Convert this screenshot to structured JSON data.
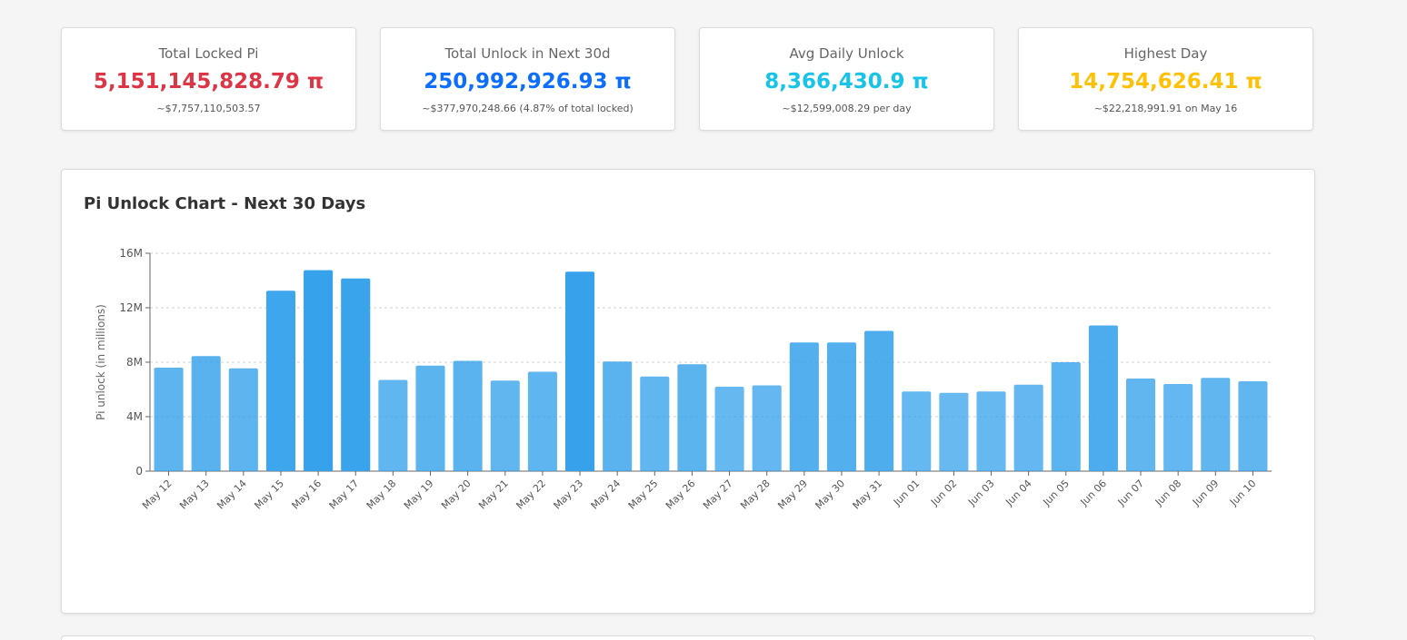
{
  "stats": [
    {
      "title": "Total Locked Pi",
      "value": "5,151,145,828.79 π",
      "sub": "~$7,757,110,503.57",
      "color": "#dc3545"
    },
    {
      "title": "Total Unlock in Next 30d",
      "value": "250,992,926.93 π",
      "sub": "~$377,970,248.66 (4.87% of total locked)",
      "color": "#0d6efd"
    },
    {
      "title": "Avg Daily Unlock",
      "value": "8,366,430.9 π",
      "sub": "~$12,599,008.29 per day",
      "color": "#17c3e6"
    },
    {
      "title": "Highest Day",
      "value": "14,754,626.41 π",
      "sub": "~$22,218,991.91 on May 16",
      "color": "#ffc107"
    }
  ],
  "chart": {
    "title": "Pi Unlock Chart - Next 30 Days"
  },
  "chart_data": {
    "type": "bar",
    "title": "Pi Unlock Chart - Next 30 Days",
    "xlabel": "",
    "ylabel": "Pi unlock (in millions)",
    "ylim": [
      0,
      16000000
    ],
    "yticks": [
      0,
      4000000,
      8000000,
      12000000,
      16000000
    ],
    "ytick_labels": [
      "0",
      "4M",
      "8M",
      "12M",
      "16M"
    ],
    "grid": true,
    "categories": [
      "May 12",
      "May 13",
      "May 14",
      "May 15",
      "May 16",
      "May 17",
      "May 18",
      "May 19",
      "May 20",
      "May 21",
      "May 22",
      "May 23",
      "May 24",
      "May 25",
      "May 26",
      "May 27",
      "May 28",
      "May 29",
      "May 30",
      "May 31",
      "Jun 01",
      "Jun 02",
      "Jun 03",
      "Jun 04",
      "Jun 05",
      "Jun 06",
      "Jun 07",
      "Jun 08",
      "Jun 09",
      "Jun 10"
    ],
    "values": [
      7600000,
      8450000,
      7550000,
      13250000,
      14754626.41,
      14150000,
      6700000,
      7750000,
      8100000,
      6650000,
      7300000,
      14650000,
      8050000,
      6950000,
      7850000,
      6200000,
      6300000,
      9450000,
      9450000,
      10300000,
      5850000,
      5750000,
      5850000,
      6350000,
      8000000,
      10700000,
      6800000,
      6400000,
      6850000,
      6600000
    ],
    "colors": {
      "bar_base": "#36a2eb"
    }
  }
}
